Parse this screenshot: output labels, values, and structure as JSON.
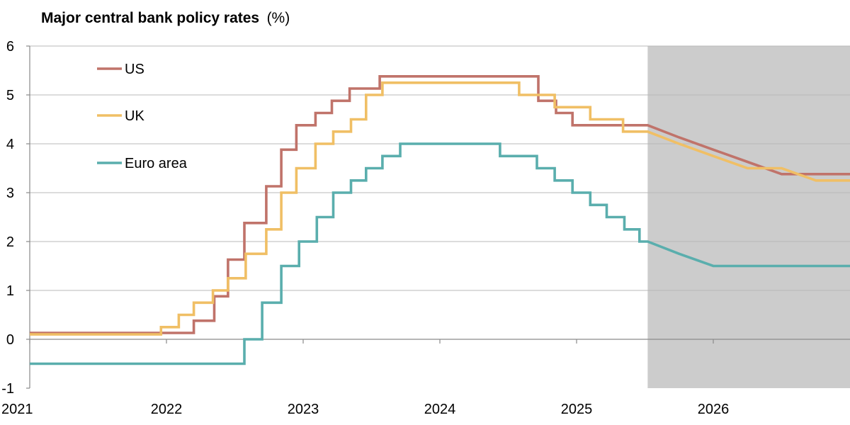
{
  "chart_data": {
    "type": "line",
    "title": "Major central bank policy rates",
    "title_unit": "(%)",
    "xlabel": "",
    "ylabel": "",
    "xlim": [
      2021.0,
      2027.0
    ],
    "ylim": [
      -1,
      6
    ],
    "y_ticks": [
      -1,
      0,
      1,
      2,
      3,
      4,
      5,
      6
    ],
    "x_ticks": [
      2021,
      2022,
      2023,
      2024,
      2025,
      2026
    ],
    "x_tick_labels": [
      "2021",
      "2022",
      "2023",
      "2024",
      "2025",
      "2026"
    ],
    "grid": "horizontal",
    "forecast_region": {
      "x_start": 2025.52,
      "x_end": 2027.0,
      "color": "#cccccc"
    },
    "legend": {
      "placement": "top-left"
    },
    "series": [
      {
        "name": "US",
        "color": "#c0736a",
        "step": true,
        "points": [
          [
            2021.0,
            0.13
          ],
          [
            2022.2,
            0.38
          ],
          [
            2022.35,
            0.88
          ],
          [
            2022.45,
            1.63
          ],
          [
            2022.57,
            2.38
          ],
          [
            2022.73,
            3.13
          ],
          [
            2022.84,
            3.88
          ],
          [
            2022.95,
            4.38
          ],
          [
            2023.09,
            4.63
          ],
          [
            2023.21,
            4.88
          ],
          [
            2023.34,
            5.13
          ],
          [
            2023.56,
            5.38
          ],
          [
            2024.72,
            4.88
          ],
          [
            2024.85,
            4.63
          ],
          [
            2024.97,
            4.38
          ],
          [
            2025.52,
            4.38
          ]
        ],
        "forecast_points": [
          [
            2025.52,
            4.38
          ],
          [
            2025.75,
            4.13
          ],
          [
            2026.0,
            3.88
          ],
          [
            2026.25,
            3.63
          ],
          [
            2026.5,
            3.38
          ],
          [
            2027.0,
            3.38
          ]
        ]
      },
      {
        "name": "UK",
        "color": "#f0bf65",
        "step": true,
        "points": [
          [
            2021.0,
            0.1
          ],
          [
            2021.96,
            0.25
          ],
          [
            2022.09,
            0.5
          ],
          [
            2022.2,
            0.75
          ],
          [
            2022.34,
            1.0
          ],
          [
            2022.45,
            1.25
          ],
          [
            2022.58,
            1.75
          ],
          [
            2022.73,
            2.25
          ],
          [
            2022.84,
            3.0
          ],
          [
            2022.95,
            3.5
          ],
          [
            2023.09,
            4.0
          ],
          [
            2023.22,
            4.25
          ],
          [
            2023.35,
            4.5
          ],
          [
            2023.46,
            5.0
          ],
          [
            2023.58,
            5.25
          ],
          [
            2024.58,
            5.0
          ],
          [
            2024.84,
            4.75
          ],
          [
            2025.1,
            4.5
          ],
          [
            2025.34,
            4.25
          ],
          [
            2025.52,
            4.25
          ]
        ],
        "forecast_points": [
          [
            2025.52,
            4.25
          ],
          [
            2025.75,
            4.0
          ],
          [
            2026.0,
            3.75
          ],
          [
            2026.25,
            3.5
          ],
          [
            2026.5,
            3.5
          ],
          [
            2026.75,
            3.25
          ],
          [
            2027.0,
            3.25
          ]
        ]
      },
      {
        "name": "Euro area",
        "color": "#5aaead",
        "step": true,
        "points": [
          [
            2021.0,
            -0.5
          ],
          [
            2022.57,
            0.0
          ],
          [
            2022.7,
            0.75
          ],
          [
            2022.84,
            1.5
          ],
          [
            2022.97,
            2.0
          ],
          [
            2023.1,
            2.5
          ],
          [
            2023.22,
            3.0
          ],
          [
            2023.35,
            3.25
          ],
          [
            2023.46,
            3.5
          ],
          [
            2023.58,
            3.75
          ],
          [
            2023.71,
            4.0
          ],
          [
            2024.44,
            3.75
          ],
          [
            2024.71,
            3.5
          ],
          [
            2024.84,
            3.25
          ],
          [
            2024.97,
            3.0
          ],
          [
            2025.1,
            2.75
          ],
          [
            2025.22,
            2.5
          ],
          [
            2025.35,
            2.25
          ],
          [
            2025.46,
            2.0
          ],
          [
            2025.52,
            2.0
          ]
        ],
        "forecast_points": [
          [
            2025.52,
            2.0
          ],
          [
            2025.75,
            1.75
          ],
          [
            2026.0,
            1.5
          ],
          [
            2027.0,
            1.5
          ]
        ]
      }
    ]
  }
}
